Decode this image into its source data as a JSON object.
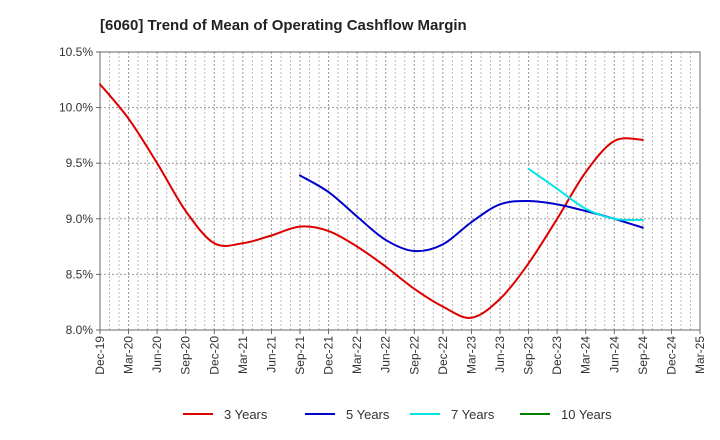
{
  "chart_data": {
    "type": "line",
    "title": "[6060]  Trend of Mean of Operating Cashflow Margin",
    "xlabel": "",
    "ylabel": "",
    "x": [
      "Dec-19",
      "Mar-20",
      "Jun-20",
      "Sep-20",
      "Dec-20",
      "Mar-21",
      "Jun-21",
      "Sep-21",
      "Dec-21",
      "Mar-22",
      "Jun-22",
      "Sep-22",
      "Dec-22",
      "Mar-23",
      "Jun-23",
      "Sep-23",
      "Dec-23",
      "Mar-24",
      "Jun-24",
      "Sep-24",
      "Dec-24",
      "Mar-25"
    ],
    "ylim": [
      8.0,
      10.5
    ],
    "yticks": [
      8.0,
      8.5,
      9.0,
      9.5,
      10.0,
      10.5
    ],
    "ytick_labels": [
      "8.0%",
      "8.5%",
      "9.0%",
      "9.5%",
      "10.0%",
      "10.5%"
    ],
    "grid": true,
    "legend_position": "bottom",
    "series": [
      {
        "name": "3 Years",
        "color": "#dd0000",
        "values": [
          10.21,
          9.9,
          9.5,
          9.07,
          8.78,
          8.78,
          8.85,
          8.93,
          8.89,
          8.75,
          8.57,
          8.37,
          8.21,
          8.11,
          8.28,
          8.6,
          9.0,
          9.42,
          9.7,
          9.71,
          null,
          null
        ]
      },
      {
        "name": "5 Years",
        "color": "#0000cc",
        "values": [
          null,
          null,
          null,
          null,
          null,
          null,
          null,
          9.39,
          9.24,
          9.02,
          8.81,
          8.71,
          8.77,
          8.97,
          9.13,
          9.16,
          9.13,
          9.07,
          9.0,
          8.92,
          null,
          null
        ]
      },
      {
        "name": "7 Years",
        "color": "#00e5e5",
        "values": [
          null,
          null,
          null,
          null,
          null,
          null,
          null,
          null,
          null,
          null,
          null,
          null,
          null,
          null,
          null,
          9.45,
          9.27,
          9.09,
          9.0,
          8.99,
          null,
          null
        ]
      },
      {
        "name": "10 Years",
        "color": "#008000",
        "values": [
          null,
          null,
          null,
          null,
          null,
          null,
          null,
          null,
          null,
          null,
          null,
          null,
          null,
          null,
          null,
          null,
          null,
          null,
          null,
          null,
          null,
          null
        ]
      }
    ]
  }
}
